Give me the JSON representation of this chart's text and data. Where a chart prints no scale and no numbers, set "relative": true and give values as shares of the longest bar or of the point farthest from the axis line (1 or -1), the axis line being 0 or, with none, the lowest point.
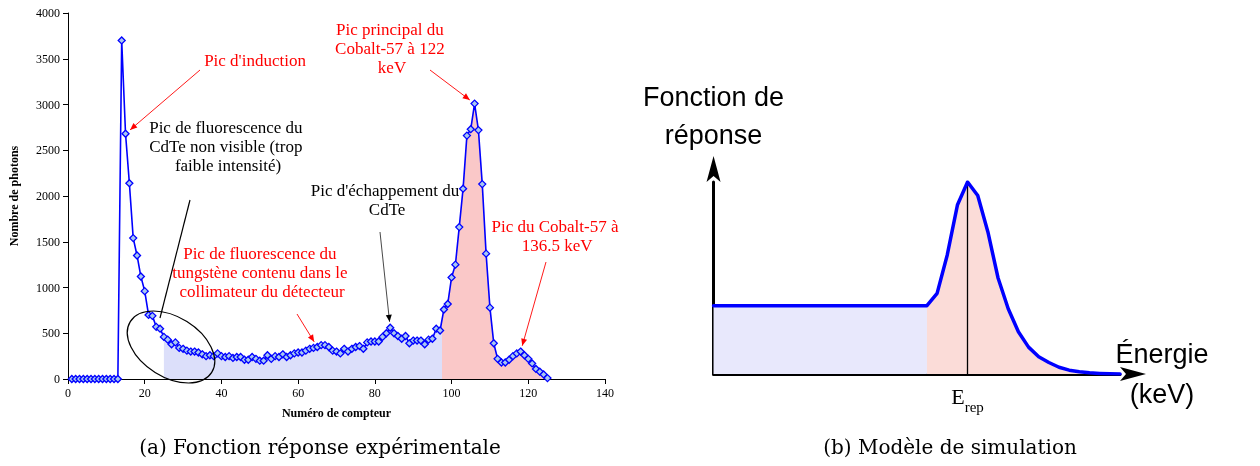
{
  "chart_data": [
    {
      "type": "line",
      "title": "(a) Fonction réponse expérimentale",
      "xlabel": "Numéro de compteur",
      "ylabel": "Nombre de photons",
      "x": [
        1,
        2,
        3,
        4,
        5,
        6,
        7,
        8,
        9,
        10,
        11,
        12,
        13,
        14,
        15,
        16,
        17,
        18,
        19,
        20,
        21,
        22,
        23,
        24,
        25,
        26,
        27,
        28,
        29,
        30,
        31,
        32,
        33,
        34,
        35,
        36,
        37,
        38,
        39,
        40,
        41,
        42,
        43,
        44,
        45,
        46,
        47,
        48,
        49,
        50,
        51,
        52,
        53,
        54,
        55,
        56,
        57,
        58,
        59,
        60,
        61,
        62,
        63,
        64,
        65,
        66,
        67,
        68,
        69,
        70,
        71,
        72,
        73,
        74,
        75,
        76,
        77,
        78,
        79,
        80,
        81,
        82,
        83,
        84,
        85,
        86,
        87,
        88,
        89,
        90,
        91,
        92,
        93,
        94,
        95,
        96,
        97,
        98,
        99,
        100,
        101,
        102,
        103,
        104,
        105,
        106,
        107,
        108,
        109,
        110,
        111,
        112,
        113,
        114,
        115,
        116,
        117,
        118,
        119,
        120,
        121,
        122,
        123,
        124,
        125
      ],
      "series": [
        {
          "color": "#0000ff",
          "values": [
            0,
            0,
            0,
            0,
            0,
            0,
            0,
            0,
            0,
            0,
            0,
            0,
            0,
            3700,
            2680,
            2140,
            1540,
            1350,
            1120,
            960,
            700,
            690,
            570,
            550,
            460,
            430,
            380,
            400,
            340,
            330,
            310,
            300,
            300,
            290,
            270,
            250,
            260,
            250,
            280,
            250,
            240,
            250,
            230,
            240,
            240,
            210,
            210,
            240,
            220,
            200,
            200,
            260,
            220,
            250,
            240,
            270,
            240,
            260,
            280,
            290,
            290,
            310,
            330,
            340,
            350,
            370,
            370,
            350,
            310,
            300,
            280,
            330,
            300,
            330,
            350,
            360,
            330,
            400,
            410,
            410,
            410,
            460,
            500,
            560,
            500,
            470,
            440,
            470,
            390,
            420,
            420,
            420,
            380,
            430,
            440,
            550,
            530,
            760,
            820,
            1110,
            1250,
            1660,
            2080,
            2660,
            2730,
            3010,
            2720,
            2130,
            1370,
            780,
            390,
            220,
            180,
            180,
            210,
            250,
            280,
            300,
            260,
            220,
            170,
            110,
            80,
            50,
            10
          ]
        },
        {
          "type": "area",
          "marker": "none",
          "color": "#dcdffa",
          "x": [
            25,
            26,
            27,
            28,
            29,
            30,
            31,
            32,
            33,
            34,
            35,
            36,
            37,
            38,
            39,
            40,
            41,
            42,
            43,
            44,
            45,
            46,
            47,
            48,
            49,
            50,
            51,
            52,
            53,
            54,
            55,
            56,
            57,
            58,
            59,
            60,
            61,
            62,
            63,
            64,
            65,
            66,
            67,
            68,
            69,
            70,
            71,
            72,
            73,
            74,
            75,
            76,
            77,
            78,
            79,
            80,
            81,
            82,
            83,
            84,
            85,
            86,
            87,
            88,
            89,
            90,
            91,
            92,
            93,
            94,
            95,
            96,
            97,
            97.5
          ],
          "values": [
            460,
            430,
            380,
            400,
            340,
            330,
            310,
            300,
            300,
            290,
            270,
            250,
            260,
            250,
            280,
            250,
            240,
            250,
            230,
            240,
            240,
            210,
            210,
            240,
            220,
            200,
            200,
            260,
            220,
            250,
            240,
            270,
            240,
            260,
            280,
            290,
            290,
            310,
            330,
            340,
            350,
            370,
            370,
            350,
            310,
            300,
            280,
            330,
            300,
            330,
            350,
            360,
            330,
            400,
            410,
            410,
            410,
            460,
            500,
            560,
            500,
            470,
            440,
            470,
            390,
            420,
            420,
            420,
            380,
            430,
            440,
            550,
            530,
            650
          ]
        },
        {
          "type": "area",
          "marker": "none",
          "color": "#fac8c8",
          "x": [
            97.5,
            98,
            99,
            100,
            101,
            102,
            103,
            104,
            105,
            106,
            107,
            108,
            109,
            110,
            111,
            112,
            113,
            114,
            115,
            116,
            117,
            118,
            119,
            120,
            121,
            122,
            123,
            124,
            125
          ],
          "values": [
            650,
            760,
            820,
            1110,
            1250,
            1660,
            2080,
            2660,
            2730,
            3010,
            2720,
            2130,
            1370,
            780,
            390,
            220,
            180,
            180,
            210,
            250,
            280,
            300,
            260,
            220,
            170,
            110,
            80,
            50,
            10
          ]
        }
      ],
      "xlim": [
        0,
        140
      ],
      "xticks": [
        0,
        20,
        40,
        60,
        80,
        100,
        120,
        140
      ],
      "ylim": [
        0,
        4000
      ],
      "yticks": [
        0,
        500,
        1000,
        1500,
        2000,
        2500,
        3000,
        3500,
        4000
      ],
      "marker": "diamond",
      "grid": false,
      "annotations": [
        {
          "text": "Pic d'induction",
          "x": 15,
          "y": 2680
        },
        "Pic de fluorescence du CdTe non visible (trop faible intensité)",
        {
          "text": "Pic de fluorescence du tungstène contenu dans le collimateur du détecteur",
          "x": 65,
          "y": 350
        },
        {
          "text": "Pic d'échappement du CdTe",
          "x": 84,
          "y": 560
        },
        {
          "text": "Pic principal du Cobalt-57 à 122 keV",
          "x": 106,
          "y": 3010
        },
        {
          "text": "Pic du Cobalt-57 à 136.5 keV",
          "x": 118,
          "y": 300
        }
      ]
    },
    {
      "type": "line",
      "title": "(b) Modèle de simulation",
      "xlabel": "Énergie (keV)",
      "ylabel": "Fonction de réponse",
      "relative": true,
      "categories": [
        null,
        null,
        null,
        null,
        null,
        null,
        null,
        null,
        null,
        null,
        null,
        null,
        null,
        null,
        null,
        null,
        null,
        null,
        null,
        null,
        null,
        null,
        null,
        null,
        null,
        null,
        null,
        null,
        null,
        null,
        null,
        null,
        null,
        null,
        null,
        null,
        null,
        null,
        null,
        null,
        null
      ],
      "series": [
        {
          "color": "#0000ff",
          "values": [
            0.356,
            0.356,
            0.356,
            0.356,
            0.356,
            0.356,
            0.356,
            0.356,
            0.356,
            0.356,
            0.356,
            0.356,
            0.356,
            0.356,
            0.356,
            0.356,
            0.356,
            0.356,
            0.356,
            0.356,
            0.356,
            0.356,
            0.42,
            0.62,
            0.88,
            1,
            0.93,
            0.74,
            0.5,
            0.34,
            0.22,
            0.14,
            0.09,
            0.06,
            0.035,
            0.02,
            0.012,
            0.006,
            0.003,
            0.001,
            0
          ]
        },
        {
          "type": "area",
          "color": "#e8e8fc",
          "values": [
            0.356,
            0.356,
            0.356,
            0.356,
            0.356,
            0.356,
            0.356,
            0.356,
            0.356,
            0.356,
            0.356,
            0.356,
            0.356,
            0.356,
            0.356,
            0.356,
            0.356,
            0.356,
            0.356,
            0.356,
            0.356,
            0.356,
            null,
            null,
            null,
            null,
            null,
            null,
            null,
            null,
            null,
            null,
            null,
            null,
            null,
            null,
            null,
            null,
            null,
            null,
            null
          ]
        },
        {
          "type": "area",
          "color": "#fbdcd8",
          "values": [
            null,
            null,
            null,
            null,
            null,
            null,
            null,
            null,
            null,
            null,
            null,
            null,
            null,
            null,
            null,
            null,
            null,
            null,
            null,
            null,
            null,
            0.356,
            0.42,
            0.62,
            0.88,
            1,
            0.93,
            0.74,
            0.5,
            0.34,
            0.22,
            0.14,
            0.09,
            0.06,
            0.035,
            0.02,
            0.012,
            0.006,
            0.003,
            0.001,
            0
          ]
        }
      ],
      "marker": "none",
      "grid": false,
      "ref_lines": [
        {
          "axis": "x",
          "value": "E$_{rep}$",
          "color": "#000000"
        }
      ]
    }
  ]
}
